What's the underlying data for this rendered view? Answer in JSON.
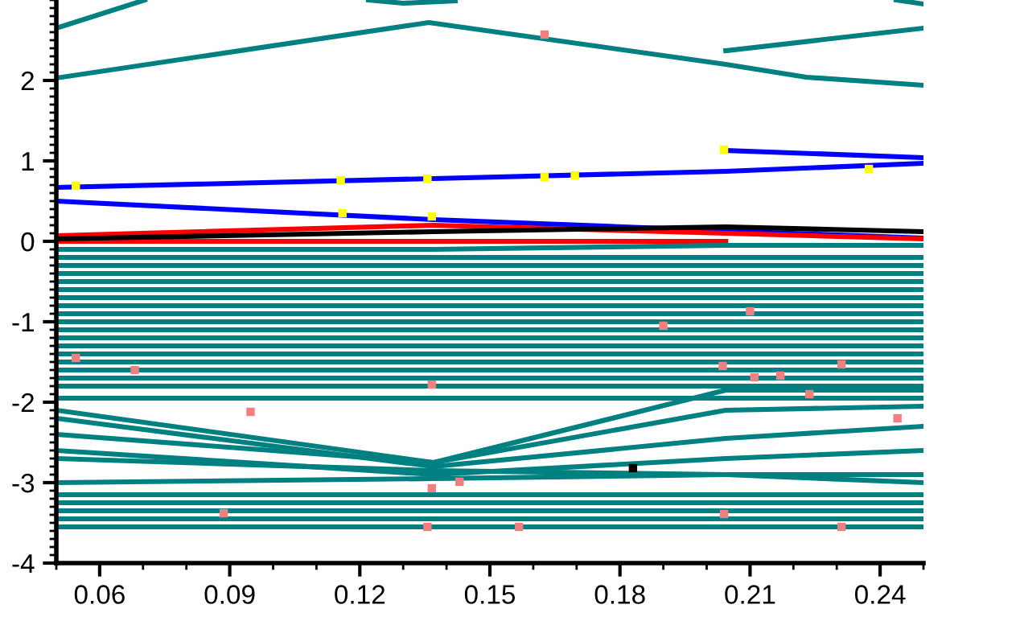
{
  "chart_data": {
    "type": "line",
    "x": [
      0.05,
      0.137,
      0.2044,
      0.25
    ],
    "xlim": [
      0.05,
      0.25
    ],
    "ylim": [
      -4,
      3
    ],
    "xticks": [
      0.06,
      0.09,
      0.12,
      0.15,
      0.18,
      0.21,
      0.24
    ],
    "yticks": [
      -4,
      -3,
      -2,
      -1,
      0,
      1,
      2
    ],
    "grid": false,
    "legend": false,
    "line_style": "solid",
    "marker": "none",
    "series": [
      {
        "color": "#008080",
        "x": [
          0.05,
          0.0704
        ],
        "values": [
          2.65,
          3.0
        ]
      },
      {
        "color": "#008080",
        "x": [
          0.122,
          0.13,
          0.142
        ],
        "values": [
          3.0,
          2.96,
          2.99
        ]
      },
      {
        "color": "#008080",
        "x": [
          0.2437,
          0.25
        ],
        "values": [
          3.0,
          2.95
        ]
      },
      {
        "color": "#008080",
        "x": [
          0.05,
          0.1359,
          0.2044,
          0.223,
          0.25
        ],
        "values": [
          2.03,
          2.72,
          2.2,
          2.04,
          1.94
        ]
      },
      {
        "color": "#008080",
        "x": [
          0.2044,
          0.25
        ],
        "values": [
          2.37,
          2.65
        ]
      },
      {
        "color": "#0000ff",
        "values": [
          0.67,
          0.78,
          0.87,
          0.97
        ]
      },
      {
        "color": "#0000ff",
        "x": [
          0.2044,
          0.25
        ],
        "values": [
          1.13,
          1.04
        ]
      },
      {
        "color": "#0000ff",
        "values": [
          0.5,
          0.27,
          0.13,
          0.04
        ]
      },
      {
        "color": "#ff0000",
        "values": [
          0.07,
          0.2,
          0.1,
          0.03
        ]
      },
      {
        "color": "#ff0000",
        "x": [
          0.05,
          0.2044
        ],
        "values": [
          0.0,
          0.0
        ]
      },
      {
        "color": "#000000",
        "values": [
          0.03,
          0.12,
          0.18,
          0.12
        ]
      },
      {
        "color": "#008080",
        "values": [
          -0.1,
          -0.1,
          -0.05,
          -0.05
        ]
      },
      {
        "color": "#008080",
        "values": [
          -0.2,
          -0.2,
          -0.2,
          -0.2
        ]
      },
      {
        "color": "#008080",
        "values": [
          -0.3,
          -0.3,
          -0.3,
          -0.3
        ]
      },
      {
        "color": "#008080",
        "values": [
          -0.4,
          -0.4,
          -0.4,
          -0.4
        ]
      },
      {
        "color": "#008080",
        "values": [
          -0.5,
          -0.5,
          -0.5,
          -0.5
        ]
      },
      {
        "color": "#008080",
        "values": [
          -0.6,
          -0.6,
          -0.6,
          -0.6
        ]
      },
      {
        "color": "#008080",
        "values": [
          -0.7,
          -0.7,
          -0.7,
          -0.7
        ]
      },
      {
        "color": "#008080",
        "values": [
          -0.8,
          -0.8,
          -0.8,
          -0.8
        ]
      },
      {
        "color": "#008080",
        "values": [
          -0.9,
          -0.9,
          -0.9,
          -0.9
        ]
      },
      {
        "color": "#008080",
        "values": [
          -1.0,
          -1.0,
          -1.0,
          -1.0
        ]
      },
      {
        "color": "#008080",
        "values": [
          -1.1,
          -1.1,
          -1.1,
          -1.1
        ]
      },
      {
        "color": "#008080",
        "values": [
          -1.2,
          -1.2,
          -1.2,
          -1.2
        ]
      },
      {
        "color": "#008080",
        "values": [
          -1.3,
          -1.3,
          -1.3,
          -1.3
        ]
      },
      {
        "color": "#008080",
        "values": [
          -1.4,
          -1.4,
          -1.4,
          -1.4
        ]
      },
      {
        "color": "#008080",
        "values": [
          -1.5,
          -1.5,
          -1.5,
          -1.5
        ]
      },
      {
        "color": "#008080",
        "values": [
          -1.6,
          -1.6,
          -1.6,
          -1.6
        ]
      },
      {
        "color": "#008080",
        "values": [
          -1.7,
          -1.7,
          -1.7,
          -1.7
        ]
      },
      {
        "color": "#008080",
        "values": [
          -1.8,
          -1.8,
          -1.8,
          -1.8
        ]
      },
      {
        "color": "#008080",
        "values": [
          -1.95,
          -1.95,
          -1.95,
          -1.95
        ]
      },
      {
        "color": "#008080",
        "values": [
          -2.1,
          -2.75,
          -1.85,
          -1.85
        ]
      },
      {
        "color": "#008080",
        "values": [
          -2.2,
          -2.8,
          -2.45,
          -2.3
        ]
      },
      {
        "color": "#008080",
        "values": [
          -2.4,
          -2.75,
          -2.1,
          -2.05
        ]
      },
      {
        "color": "#008080",
        "values": [
          -2.6,
          -2.9,
          -2.7,
          -2.6
        ]
      },
      {
        "color": "#008080",
        "values": [
          -2.7,
          -2.85,
          -2.9,
          -3.0
        ]
      },
      {
        "color": "#008080",
        "values": [
          -3.0,
          -2.95,
          -2.9,
          -2.9
        ]
      },
      {
        "color": "#008080",
        "values": [
          -3.15,
          -3.15,
          -3.15,
          -3.15
        ]
      },
      {
        "color": "#008080",
        "values": [
          -3.25,
          -3.25,
          -3.25,
          -3.25
        ]
      },
      {
        "color": "#008080",
        "values": [
          -3.35,
          -3.35,
          -3.35,
          -3.35
        ]
      },
      {
        "color": "#008080",
        "values": [
          -3.45,
          -3.45,
          -3.45,
          -3.45
        ]
      },
      {
        "color": "#008080",
        "values": [
          -3.55,
          -3.55,
          -3.55,
          -3.55
        ]
      },
      {
        "type": "scatter",
        "marker": "square",
        "color": "#f08080",
        "x": [
          0.0545,
          0.0681,
          0.0948,
          0.0886,
          0.1366,
          0.1366,
          0.143,
          0.1356,
          0.1567,
          0.19,
          0.21,
          0.2037,
          0.211,
          0.217,
          0.2237,
          0.2311,
          0.244,
          0.204,
          0.2311,
          0.1626
        ],
        "values": [
          -1.45,
          -1.6,
          -2.12,
          -3.38,
          -1.78,
          -3.07,
          -2.99,
          -3.55,
          -3.55,
          -1.05,
          -0.87,
          -1.55,
          -1.69,
          -1.67,
          -1.9,
          -1.53,
          -2.2,
          -3.39,
          -3.55,
          2.57
        ]
      },
      {
        "type": "scatter",
        "marker": "square",
        "color": "#000000",
        "x": [
          0.183
        ],
        "values": [
          -2.82
        ]
      },
      {
        "type": "scatter",
        "marker": "square",
        "color": "#ffff00",
        "x": [
          0.0545,
          0.1156,
          0.1356,
          0.1626,
          0.1696,
          0.204,
          0.2374,
          0.116,
          0.1366
        ],
        "values": [
          0.69,
          0.76,
          0.78,
          0.8,
          0.82,
          1.14,
          0.9,
          0.35,
          0.31
        ]
      }
    ]
  }
}
